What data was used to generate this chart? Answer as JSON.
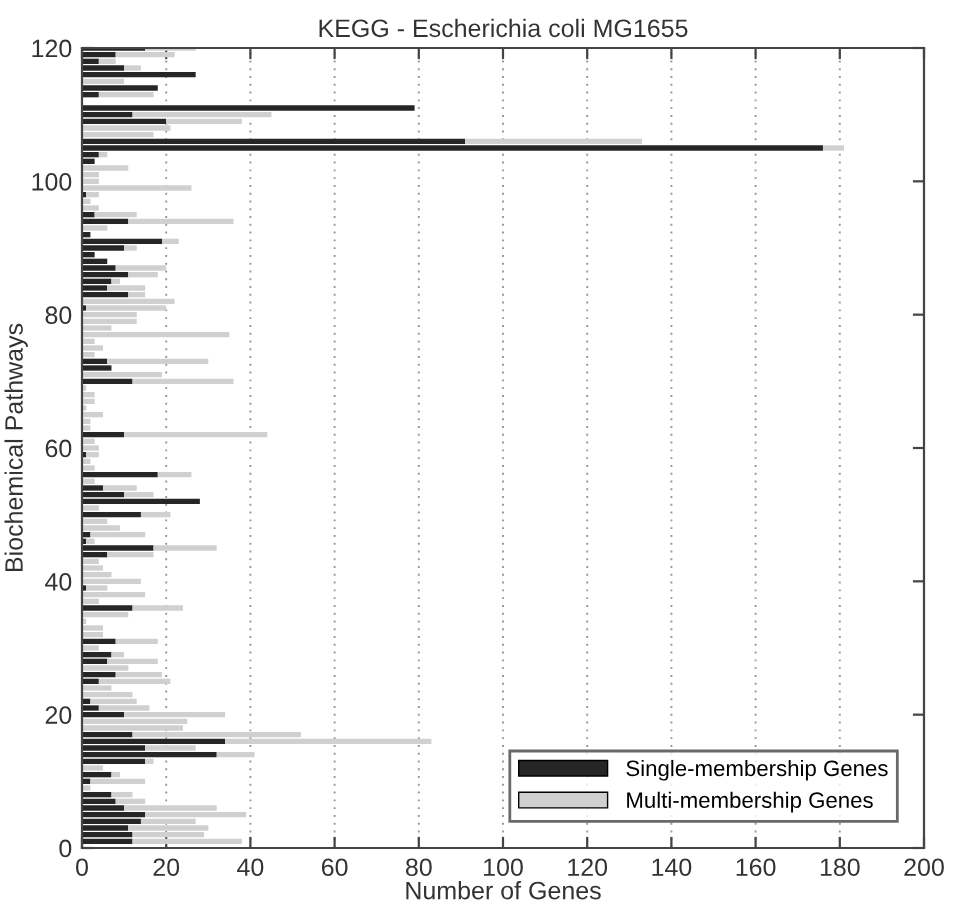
{
  "chart_data": {
    "type": "bar",
    "orientation": "horizontal",
    "stacked": true,
    "title": "KEGG - Escherichia coli MG1655",
    "xlabel": "Number of Genes",
    "ylabel": "Biochemical Pathways",
    "x": [
      1,
      2,
      3,
      4,
      5,
      6,
      7,
      8,
      9,
      10,
      11,
      12,
      13,
      14,
      15,
      16,
      17,
      18,
      19,
      20,
      21,
      22,
      23,
      24,
      25,
      26,
      27,
      28,
      29,
      30,
      31,
      32,
      33,
      34,
      35,
      36,
      37,
      38,
      39,
      40,
      41,
      42,
      43,
      44,
      45,
      46,
      47,
      48,
      49,
      50,
      51,
      52,
      53,
      54,
      55,
      56,
      57,
      58,
      59,
      60,
      61,
      62,
      63,
      64,
      65,
      66,
      67,
      68,
      69,
      70,
      71,
      72,
      73,
      74,
      75,
      76,
      77,
      78,
      79,
      80,
      81,
      82,
      83,
      84,
      85,
      86,
      87,
      88,
      89,
      90,
      91,
      92,
      93,
      94,
      95,
      96,
      97,
      98,
      99,
      100,
      101,
      102,
      103,
      104,
      105,
      106,
      107,
      108,
      109,
      110,
      111,
      112,
      113,
      114,
      115,
      116,
      117,
      118,
      119,
      120
    ],
    "series": [
      {
        "name": "Single-membership Genes",
        "color": "#262626",
        "values": [
          12,
          12,
          11,
          14,
          15,
          10,
          8,
          7,
          0,
          2,
          7,
          0,
          15,
          32,
          15,
          34,
          12,
          0,
          0,
          10,
          4,
          2,
          0,
          0,
          4,
          8,
          0,
          6,
          7,
          0,
          8,
          0,
          0,
          0,
          0,
          12,
          0,
          0,
          1,
          0,
          0,
          0,
          0,
          6,
          17,
          1,
          2,
          0,
          0,
          14,
          0,
          28,
          10,
          5,
          0,
          18,
          0,
          0,
          1,
          0,
          0,
          10,
          0,
          0,
          0,
          0,
          0,
          0,
          0,
          12,
          0,
          7,
          6,
          0,
          0,
          0,
          0,
          0,
          0,
          0,
          1,
          0,
          11,
          6,
          7,
          11,
          8,
          6,
          3,
          10,
          19,
          2,
          0,
          11,
          3,
          0,
          0,
          1,
          0,
          0,
          0,
          0,
          3,
          4,
          176,
          91,
          0,
          0,
          20,
          12,
          79,
          0,
          4,
          18,
          0,
          27,
          10,
          4,
          8,
          15
        ]
      },
      {
        "name": "Multi-membership Genes",
        "color": "#d0d0d0",
        "values": [
          26,
          17,
          19,
          13,
          24,
          22,
          7,
          5,
          2,
          13,
          2,
          5,
          2,
          9,
          12,
          49,
          40,
          24,
          25,
          24,
          12,
          11,
          12,
          7,
          17,
          11,
          11,
          12,
          3,
          4,
          10,
          5,
          5,
          1,
          11,
          12,
          4,
          15,
          5,
          14,
          7,
          5,
          4,
          11,
          15,
          2,
          13,
          9,
          6,
          7,
          4,
          0,
          7,
          8,
          3,
          8,
          3,
          2,
          3,
          4,
          3,
          34,
          2,
          2,
          5,
          1,
          3,
          3,
          1,
          24,
          19,
          0,
          24,
          3,
          5,
          3,
          35,
          7,
          13,
          13,
          19,
          22,
          4,
          9,
          2,
          7,
          12,
          0,
          0,
          3,
          4,
          0,
          6,
          25,
          10,
          4,
          2,
          3,
          26,
          4,
          4,
          11,
          0,
          2,
          5,
          42,
          17,
          21,
          18,
          33,
          0,
          0,
          13,
          0,
          10,
          0,
          4,
          4,
          14,
          12
        ]
      }
    ],
    "xlim": [
      0,
      200
    ],
    "xticks": [
      0,
      20,
      40,
      60,
      80,
      100,
      120,
      140,
      160,
      180,
      200
    ],
    "ylim": [
      0,
      120
    ],
    "yticks": [
      0,
      20,
      40,
      60,
      80,
      100,
      120
    ],
    "grid": "x",
    "legend": "bottom right"
  }
}
